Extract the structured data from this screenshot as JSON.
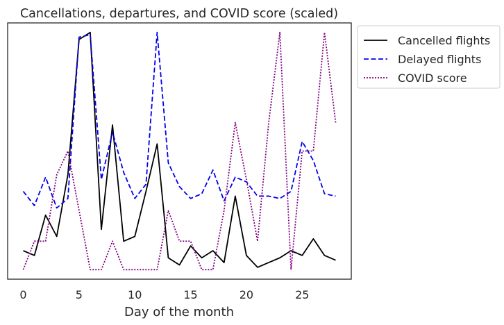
{
  "chart_data": {
    "type": "line",
    "title": "Cancellations, departures, and COVID score (scaled)",
    "xlabel": "Day of the month",
    "ylabel": "",
    "xlim": [
      -1.4,
      29.4
    ],
    "ylim": [
      -0.04,
      1.04
    ],
    "xticks": [
      0,
      5,
      10,
      15,
      20,
      25
    ],
    "x": [
      0,
      1,
      2,
      3,
      4,
      5,
      6,
      7,
      8,
      9,
      10,
      11,
      12,
      13,
      14,
      15,
      16,
      17,
      18,
      19,
      20,
      21,
      22,
      23,
      24,
      25,
      26,
      27,
      28
    ],
    "grid": false,
    "legend_position": "outside-top-right",
    "series": [
      {
        "name": "Cancelled flights",
        "color": "#000000",
        "dash": "solid",
        "values": [
          0.08,
          0.06,
          0.23,
          0.14,
          0.4,
          0.97,
          1.0,
          0.17,
          0.61,
          0.12,
          0.14,
          0.33,
          0.53,
          0.05,
          0.02,
          0.1,
          0.05,
          0.08,
          0.03,
          0.31,
          0.06,
          0.01,
          0.03,
          0.05,
          0.08,
          0.06,
          0.13,
          0.06,
          0.04
        ]
      },
      {
        "name": "Delayed flights",
        "color": "#0000ee",
        "dash": "dashed",
        "values": [
          0.33,
          0.27,
          0.39,
          0.26,
          0.3,
          0.98,
          0.99,
          0.38,
          0.58,
          0.41,
          0.3,
          0.36,
          1.0,
          0.45,
          0.35,
          0.3,
          0.32,
          0.42,
          0.29,
          0.39,
          0.37,
          0.31,
          0.31,
          0.3,
          0.33,
          0.54,
          0.46,
          0.32,
          0.31
        ]
      },
      {
        "name": "COVID score",
        "color": "#800080",
        "dash": "dotted",
        "values": [
          0.0,
          0.12,
          0.12,
          0.4,
          0.5,
          0.25,
          0.0,
          0.0,
          0.12,
          0.0,
          0.0,
          0.0,
          0.0,
          0.25,
          0.12,
          0.12,
          0.0,
          0.0,
          0.25,
          0.62,
          0.38,
          0.12,
          0.62,
          1.0,
          0.0,
          0.5,
          0.5,
          1.0,
          0.62
        ]
      }
    ]
  }
}
